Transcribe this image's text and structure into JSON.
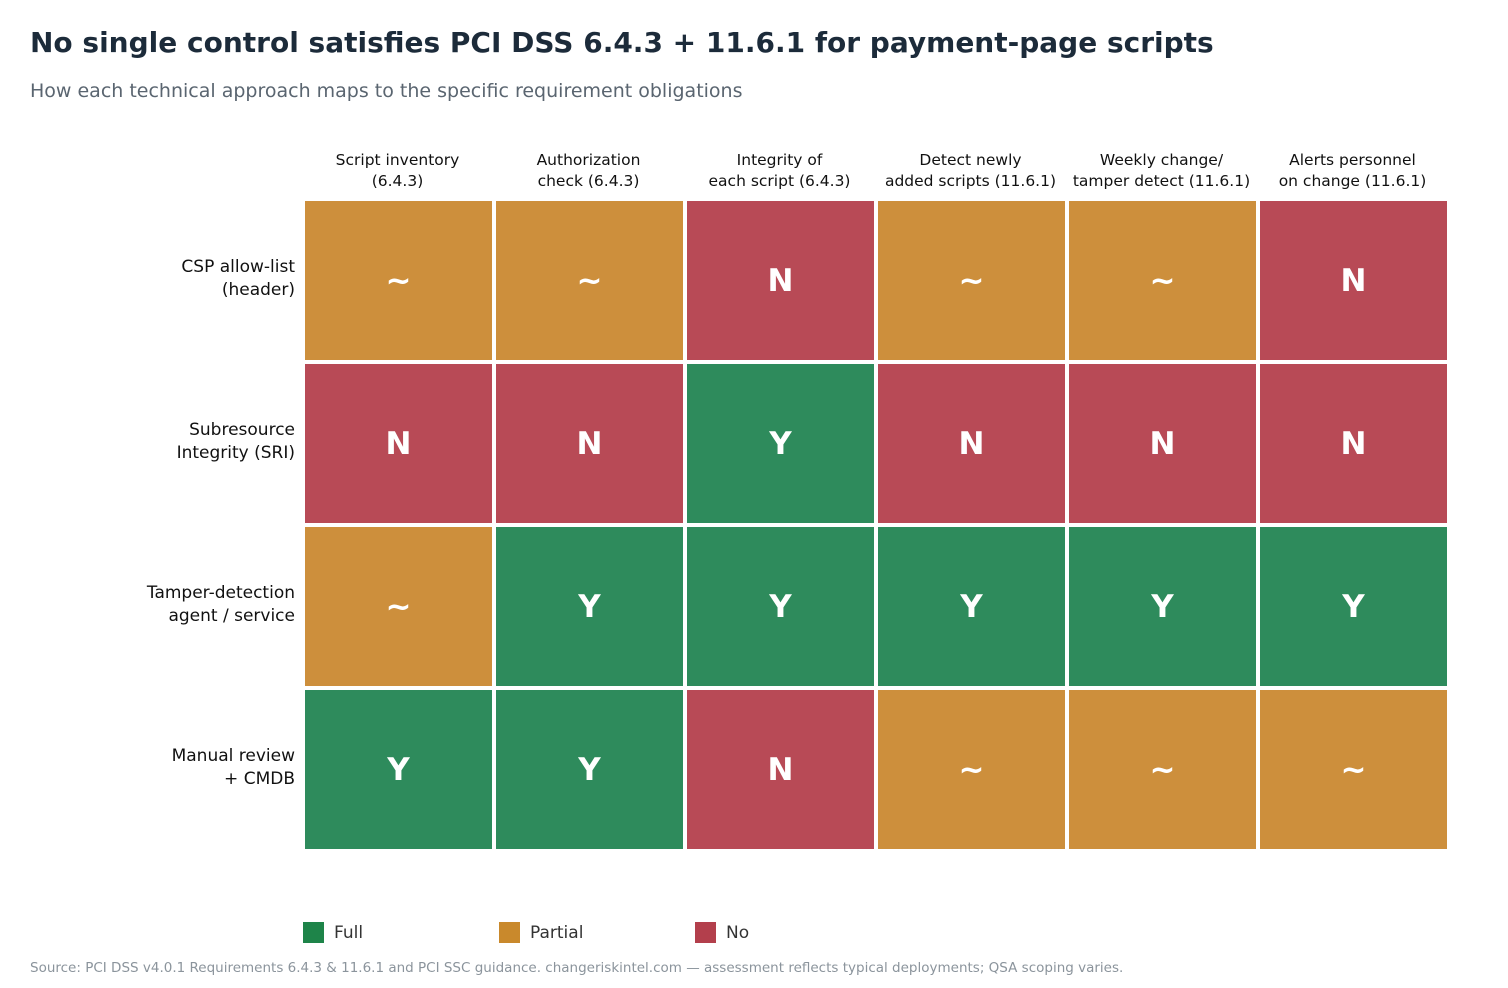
{
  "chart_data": {
    "type": "heatmap",
    "title": "No single control satisfies PCI DSS 6.4.3 + 11.6.1 for payment-page scripts",
    "subtitle": "How each technical approach maps to the specific requirement obligations",
    "columns": [
      "Script inventory\n(6.4.3)",
      "Authorization\ncheck (6.4.3)",
      "Integrity of\neach script (6.4.3)",
      "Detect newly\nadded scripts (11.6.1)",
      "Weekly change/\ntamper detect (11.6.1)",
      "Alerts personnel\non change (11.6.1)"
    ],
    "rows": [
      "CSP allow-list\n(header)",
      "Subresource\nIntegrity (SRI)",
      "Tamper-detection\nagent / service",
      "Manual review\n+ CMDB"
    ],
    "values": [
      [
        "~",
        "~",
        "N",
        "~",
        "~",
        "N"
      ],
      [
        "N",
        "N",
        "Y",
        "N",
        "N",
        "N"
      ],
      [
        "~",
        "Y",
        "Y",
        "Y",
        "Y",
        "Y"
      ],
      [
        "Y",
        "Y",
        "N",
        "~",
        "~",
        "~"
      ]
    ],
    "legend": [
      {
        "key": "Y",
        "label": "Full",
        "color": "#1e8449"
      },
      {
        "key": "~",
        "label": "Partial",
        "color": "#c9892c"
      },
      {
        "key": "N",
        "label": "No",
        "color": "#b33f4c"
      }
    ],
    "cell_colors": {
      "Y": "#2e8b5c",
      "~": "#cd8f3c",
      "N": "#b84a56"
    },
    "legend_placement": "bottom-left",
    "source": "Source: PCI DSS v4.0.1 Requirements 6.4.3 & 11.6.1 and PCI SSC guidance. changeriskintel.com — assessment reflects typical deployments; QSA scoping varies."
  }
}
